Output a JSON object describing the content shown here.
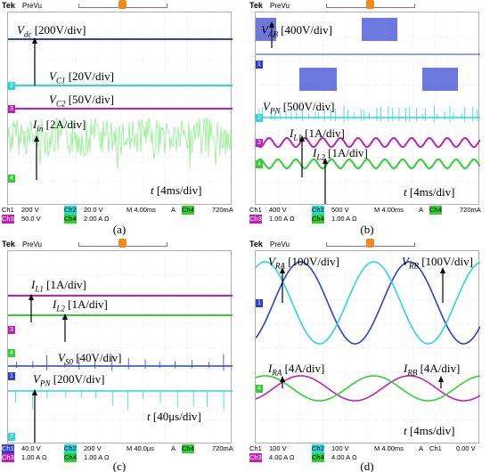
{
  "panels": {
    "a": {
      "caption": "(a)",
      "tek": "Tek",
      "prevu": "PreVu",
      "labels": {
        "vdc_sym": "V",
        "vdc_sub": "dc",
        "vdc_scale": "[200V/div]",
        "vc1_sym": "V",
        "vc1_sub": "C1",
        "vc1_scale": "[20V/div]",
        "vc2_sym": "V",
        "vc2_sub": "C2",
        "vc2_scale": "[50V/div]",
        "iin_sym": "I",
        "iin_sub": "in",
        "iin_scale": "[2A/div]",
        "t_sym": "t",
        "t_scale": "[4ms/div]"
      },
      "channels": [
        "2",
        "3",
        "4"
      ],
      "status": {
        "row1": [
          "Ch1",
          "200 V",
          "Ch2",
          "20.0 V",
          "M 4.00ms",
          "A",
          "Ch4",
          "720mA"
        ],
        "row2": [
          "Ch3",
          "50.0 V",
          "Ch4",
          "2.00 A Ω"
        ]
      }
    },
    "b": {
      "caption": "(b)",
      "tek": "Tek",
      "prevu": "PreVu",
      "labels": {
        "vab_sym": "V",
        "vab_sub": "AB",
        "vab_scale": "[400V/div]",
        "vpn_sym": "V",
        "vpn_sub": "PN",
        "vpn_scale": "[500V/div]",
        "il1_sym": "I",
        "il1_sub": "L1",
        "il1_scale": "[1A/div]",
        "il2_sym": "I",
        "il2_sub": "L2",
        "il2_scale": "[1A/div]",
        "t_sym": "t",
        "t_scale": "[4ms/div]"
      },
      "channels": [
        "1",
        "2",
        "3",
        "4"
      ],
      "status": {
        "row1": [
          "Ch1",
          "400 V",
          "Ch2",
          "500 V",
          "M 4.00ms",
          "A",
          "Ch4",
          "720mA"
        ],
        "row2": [
          "Ch3",
          "1.00 A Ω",
          "Ch4",
          "1.00 A Ω"
        ]
      }
    },
    "c": {
      "caption": "(c)",
      "tek": "Tek",
      "prevu": "PreVu",
      "labels": {
        "il1_sym": "I",
        "il1_sub": "L1",
        "il1_scale": "[1A/div]",
        "il2_sym": "I",
        "il2_sub": "L2",
        "il2_scale": "[1A/div]",
        "vs0_sym": "V",
        "vs0_sub": "S0",
        "vs0_scale": "[40V/div]",
        "vpn_sym": "V",
        "vpn_sub": "PN",
        "vpn_scale": "[200V/div]",
        "t_sym": "t",
        "t_scale": "[40μs/div]"
      },
      "channels": [
        "3",
        "4",
        "1",
        "2"
      ],
      "status": {
        "row1": [
          "Ch1",
          "40.0 V",
          "Ch2",
          "200 V",
          "M 40.0μs",
          "A",
          "Ch4",
          "720mA"
        ],
        "row2": [
          "Ch3",
          "1.00 A Ω",
          "Ch4",
          "1.00 A Ω"
        ]
      }
    },
    "d": {
      "caption": "(d)",
      "tek": "Tek",
      "prevu": "PreVu",
      "labels": {
        "vra_sym": "V",
        "vra_sub": "RA",
        "vra_scale": "[100V/div]",
        "vrb_sym": "V",
        "vrb_sub": "RB",
        "vrb_scale": "[100V/div]",
        "ira_sym": "I",
        "ira_sub": "RA",
        "ira_scale": "[4A/div]",
        "irb_sym": "I",
        "irb_sub": "RB",
        "irb_scale": "[4A/div]",
        "t_sym": "t",
        "t_scale": "[4ms/div]"
      },
      "channels": [
        "1",
        "4"
      ],
      "status": {
        "row1": [
          "Ch1",
          "100 V",
          "Ch2",
          "100 V",
          "M 4.00ms",
          "A",
          "Ch1",
          "0.00 V"
        ],
        "row2": [
          "Ch3",
          "4.00 A Ω",
          "Ch4",
          "4.00 A Ω"
        ]
      }
    }
  },
  "colors": {
    "ch1": "#2e3fcf",
    "ch2": "#28d8d8",
    "ch3": "#c020b8",
    "ch4": "#30d030",
    "ch4_light": "#90f090",
    "grid": "#c8c8c8",
    "trigger": "#f08a1c"
  }
}
